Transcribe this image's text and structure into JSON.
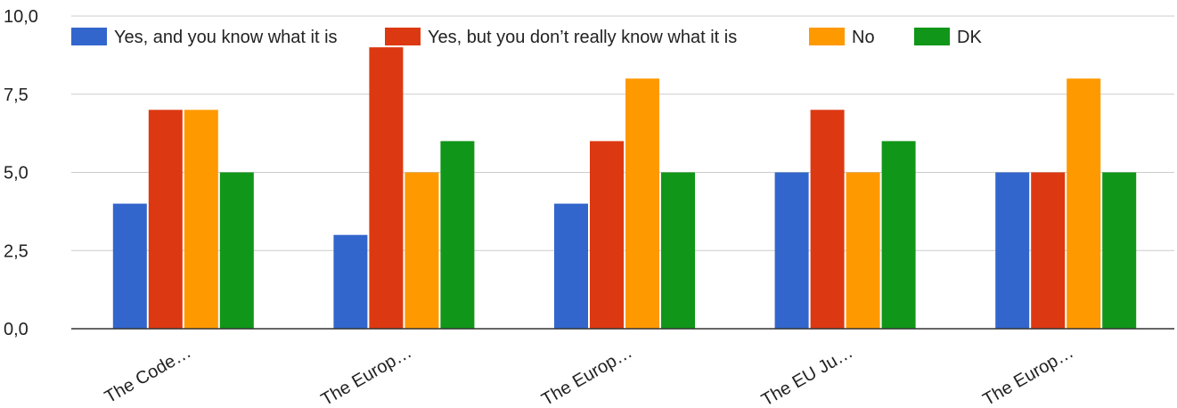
{
  "chart_data": {
    "type": "bar",
    "title": "",
    "xlabel": "",
    "ylabel": "",
    "ylim": [
      0,
      10
    ],
    "yticks": [
      "0,0",
      "2,5",
      "5,0",
      "7,5",
      "10,0"
    ],
    "grid": true,
    "legend_position": "top",
    "categories": [
      "The Code…",
      "The Europ…",
      "The Europ…",
      "The EU Ju…",
      "The Europ…"
    ],
    "series": [
      {
        "name": "Yes, and you know what it is",
        "color": "#3366cc",
        "values": [
          4,
          3,
          4,
          5,
          5
        ]
      },
      {
        "name": "Yes, but you don’t really know what it is",
        "color": "#dc3912",
        "values": [
          7,
          9,
          6,
          7,
          5
        ]
      },
      {
        "name": "No",
        "color": "#ff9900",
        "values": [
          7,
          5,
          8,
          5,
          8
        ]
      },
      {
        "name": "DK",
        "color": "#109618",
        "values": [
          5,
          6,
          5,
          6,
          5
        ]
      }
    ]
  }
}
